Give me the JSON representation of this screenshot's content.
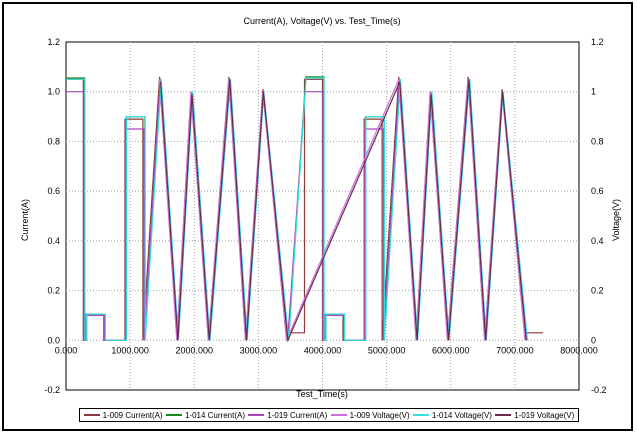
{
  "chart_data": {
    "type": "line",
    "title": "Current(A), Voltage(V) vs. Test_Time(s)",
    "xlabel": "Test_Time(s)",
    "ylabel_left": "Current(A)",
    "ylabel_right": "Voltage(V)",
    "xlim": [
      0,
      8000
    ],
    "ylim": [
      -0.2,
      1.2
    ],
    "x_ticks": [
      "0.000",
      "1000.000",
      "2000.000",
      "3000.000",
      "4000.000",
      "5000.000",
      "6000.000",
      "7000.000",
      "8000.000"
    ],
    "y_ticks_left": [
      "-0.2",
      "0.0",
      "0.2",
      "0.4",
      "0.6",
      "0.8",
      "1.0",
      "1.2"
    ],
    "y_ticks_right": [
      "-0.2",
      "0",
      "0.2",
      "0.4",
      "0.6",
      "0.8",
      "1",
      "1.2"
    ],
    "grid": true,
    "legend_position": "bottom",
    "series": [
      {
        "name": "1-009 Current(A)",
        "color": "#8b3a3a",
        "points": [
          [
            0,
            1.05
          ],
          [
            270,
            1.05
          ],
          [
            270,
            0.0
          ],
          [
            300,
            0.0
          ],
          [
            300,
            0.105
          ],
          [
            590,
            0.105
          ],
          [
            590,
            0.0
          ],
          [
            920,
            0.0
          ],
          [
            920,
            0.89
          ],
          [
            1200,
            0.89
          ],
          [
            1200,
            0.0
          ],
          [
            1460,
            1.06
          ],
          [
            1730,
            0.0
          ],
          [
            1950,
            1.0
          ],
          [
            2220,
            0.0
          ],
          [
            2540,
            1.06
          ],
          [
            2800,
            0.0
          ],
          [
            3070,
            1.01
          ],
          [
            3440,
            0.0
          ],
          [
            3450,
            0.03
          ],
          [
            3720,
            0.03
          ],
          [
            3720,
            1.05
          ],
          [
            4000,
            1.05
          ],
          [
            4000,
            0.0
          ],
          [
            4030,
            0.0
          ],
          [
            4030,
            0.105
          ],
          [
            4320,
            0.105
          ],
          [
            4320,
            0.0
          ],
          [
            4650,
            0.0
          ],
          [
            4650,
            0.89
          ],
          [
            4930,
            0.89
          ],
          [
            4930,
            0.0
          ],
          [
            5190,
            1.06
          ],
          [
            5460,
            0.0
          ],
          [
            5680,
            1.0
          ],
          [
            5950,
            0.0
          ],
          [
            6270,
            1.06
          ],
          [
            6530,
            0.0
          ],
          [
            6800,
            1.01
          ],
          [
            7160,
            0.0
          ],
          [
            7170,
            0.03
          ],
          [
            7440,
            0.03
          ]
        ]
      },
      {
        "name": "1-014 Current(A)",
        "color": "#1a8a1a",
        "points": [
          [
            0,
            1.055
          ],
          [
            290,
            1.055
          ],
          [
            290,
            0.0
          ],
          [
            320,
            0.0
          ],
          [
            320,
            0.105
          ],
          [
            610,
            0.105
          ],
          [
            610,
            0.0
          ],
          [
            940,
            0.0
          ],
          [
            940,
            0.9
          ],
          [
            1230,
            0.9
          ],
          [
            1230,
            0.0
          ],
          [
            1480,
            1.05
          ],
          [
            1750,
            0.0
          ],
          [
            1970,
            1.0
          ],
          [
            2240,
            0.0
          ],
          [
            2560,
            1.05
          ],
          [
            2820,
            0.0
          ],
          [
            3080,
            1.0
          ],
          [
            3470,
            0.0
          ],
          [
            3740,
            1.06
          ],
          [
            4020,
            1.06
          ],
          [
            4020,
            0.0
          ],
          [
            4050,
            0.0
          ],
          [
            4050,
            0.105
          ],
          [
            4340,
            0.105
          ],
          [
            4340,
            0.0
          ],
          [
            4670,
            0.0
          ],
          [
            4670,
            0.9
          ],
          [
            4960,
            0.9
          ],
          [
            4960,
            0.0
          ],
          [
            5210,
            1.05
          ],
          [
            5480,
            0.0
          ],
          [
            5700,
            1.0
          ],
          [
            5970,
            0.0
          ],
          [
            6290,
            1.05
          ],
          [
            6550,
            0.0
          ],
          [
            6810,
            1.0
          ],
          [
            7190,
            0.0
          ]
        ]
      },
      {
        "name": "1-019 Current(A)",
        "color": "#b040c0",
        "points": [
          [
            0,
            1.0
          ],
          [
            280,
            1.0
          ],
          [
            280,
            0.0
          ],
          [
            310,
            0.0
          ],
          [
            310,
            0.1
          ],
          [
            600,
            0.1
          ],
          [
            600,
            0.0
          ],
          [
            930,
            0.0
          ],
          [
            930,
            0.85
          ],
          [
            1220,
            0.85
          ],
          [
            1220,
            0.0
          ],
          [
            1470,
            1.04
          ],
          [
            1740,
            0.0
          ],
          [
            1960,
            0.99
          ],
          [
            2230,
            0.0
          ],
          [
            2550,
            1.05
          ],
          [
            2810,
            0.0
          ],
          [
            3075,
            1.0
          ],
          [
            3455,
            0.0
          ],
          [
            3730,
            1.0
          ],
          [
            4010,
            1.0
          ],
          [
            4010,
            0.0
          ],
          [
            4040,
            0.0
          ],
          [
            4040,
            0.1
          ],
          [
            4330,
            0.1
          ],
          [
            4330,
            0.0
          ],
          [
            4660,
            0.0
          ],
          [
            4660,
            0.85
          ],
          [
            4950,
            0.85
          ],
          [
            4950,
            0.0
          ],
          [
            5200,
            1.04
          ],
          [
            5470,
            0.0
          ],
          [
            5690,
            0.99
          ],
          [
            5960,
            0.0
          ],
          [
            6280,
            1.05
          ],
          [
            6540,
            0.0
          ],
          [
            6805,
            1.0
          ],
          [
            7175,
            0.0
          ]
        ]
      },
      {
        "name": "1-009 Voltage(V)",
        "color": "#d070e0",
        "points": [
          [
            1460,
            1.05
          ],
          [
            1730,
            0.0
          ],
          [
            1950,
            1.0
          ],
          [
            2220,
            0.0
          ],
          [
            2540,
            1.05
          ],
          [
            2800,
            0.0
          ],
          [
            3070,
            1.0
          ],
          [
            3440,
            0.0
          ],
          [
            5190,
            1.05
          ],
          [
            5460,
            0.0
          ],
          [
            5680,
            1.0
          ],
          [
            5950,
            0.0
          ],
          [
            6270,
            1.05
          ],
          [
            6530,
            0.0
          ],
          [
            6800,
            1.0
          ],
          [
            7160,
            0.0
          ]
        ]
      },
      {
        "name": "1-014 Voltage(V)",
        "color": "#30e0e0",
        "points": [
          [
            0,
            1.05
          ],
          [
            295,
            1.05
          ],
          [
            295,
            0.0
          ],
          [
            325,
            0.0
          ],
          [
            325,
            0.105
          ],
          [
            615,
            0.105
          ],
          [
            615,
            0.0
          ],
          [
            945,
            0.0
          ],
          [
            945,
            0.9
          ],
          [
            1235,
            0.9
          ],
          [
            1235,
            0.0
          ],
          [
            1485,
            1.05
          ],
          [
            1755,
            0.0
          ],
          [
            1975,
            1.0
          ],
          [
            2245,
            0.0
          ],
          [
            2565,
            1.05
          ],
          [
            2825,
            0.0
          ],
          [
            3085,
            1.0
          ],
          [
            3475,
            0.0
          ],
          [
            3745,
            1.055
          ],
          [
            4025,
            1.055
          ],
          [
            4025,
            0.0
          ],
          [
            4055,
            0.0
          ],
          [
            4055,
            0.105
          ],
          [
            4345,
            0.105
          ],
          [
            4345,
            0.0
          ],
          [
            4675,
            0.0
          ],
          [
            4675,
            0.9
          ],
          [
            4965,
            0.9
          ],
          [
            4965,
            0.0
          ],
          [
            5215,
            1.05
          ],
          [
            5485,
            0.0
          ],
          [
            5705,
            1.0
          ],
          [
            5975,
            0.0
          ],
          [
            6295,
            1.05
          ],
          [
            6555,
            0.0
          ],
          [
            6815,
            1.0
          ],
          [
            7195,
            0.0
          ]
        ]
      },
      {
        "name": "1-019 Voltage(V)",
        "color": "#6a2a4a",
        "points": [
          [
            1475,
            1.04
          ],
          [
            1745,
            0.0
          ],
          [
            1965,
            0.99
          ],
          [
            2235,
            0.0
          ],
          [
            2555,
            1.05
          ],
          [
            2815,
            0.0
          ],
          [
            3078,
            1.0
          ],
          [
            3460,
            0.0
          ],
          [
            5205,
            1.04
          ],
          [
            5475,
            0.0
          ],
          [
            5695,
            0.99
          ],
          [
            5965,
            0.0
          ],
          [
            6285,
            1.05
          ],
          [
            6545,
            0.0
          ],
          [
            6808,
            1.0
          ],
          [
            7180,
            0.0
          ]
        ]
      }
    ]
  }
}
